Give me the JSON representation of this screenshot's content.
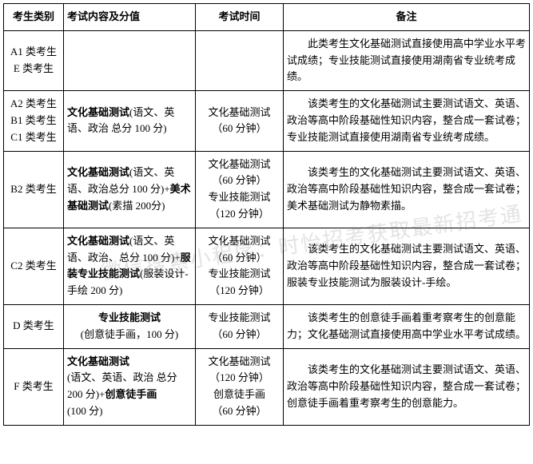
{
  "headers": {
    "category": "考生类别",
    "content": "考试内容及分值",
    "time": "考试时间",
    "remark": "备注"
  },
  "watermark": "微信搜索小程序：时怡招考获取最新招考通",
  "rows": [
    {
      "category_line1": "A1 类考生",
      "category_line2": "E 类考生",
      "content": "",
      "time": "",
      "remark": "此类考生文化基础测试直接使用高中学业水平考试成绩；专业技能测试直接使用湖南省专业统考成绩。"
    },
    {
      "category_line1": "A2 类考生",
      "category_line2": "B1 类考生",
      "category_line3": "C1 类考生",
      "content_bold": "文化基础测试",
      "content_plain": "(语文、英语、政治 总分 100 分)",
      "time_line1": "文化基础测试",
      "time_line2": "（60 分钟）",
      "remark": "该类考生的文化基础测试主要测试语文、英语、政治等高中阶段基础性知识内容，整合成一套试卷；专业技能测试直接使用湖南省专业统考成绩。"
    },
    {
      "category": "B2 类考生",
      "content_bold1": "文化基础测试",
      "content_plain1": "(语文、英语、政治总分 100 分)+",
      "content_bold2": "美术基础测试",
      "content_plain2": "(素描 200分)",
      "time_line1": "文化基础测试",
      "time_line2": "（60 分钟）",
      "time_line3": "专业技能测试",
      "time_line4": "（120 分钟）",
      "remark": "该类考生的文化基础测试主要测试语文、英语、政治等高中阶段基础性知识内容，整合成一套试卷；美术基础测试为静物素描。"
    },
    {
      "category": "C2 类考生",
      "content_bold1": "文化基础测试",
      "content_plain1": "(语文、英语、政治、总分 100 分)+",
      "content_bold2": "服装专业技能测试",
      "content_plain2": "(服装设计-手绘 200 分)",
      "time_line1": "文化基础测试",
      "time_line2": "（60 分钟）",
      "time_line3": "专业技能测试",
      "time_line4": "（120 分钟）",
      "remark": "该类考生的文化基础测试主要测试语文、英语、政治等高中阶段基础性知识内容，整合成一套试卷；服装专业技能测试为服装设计-手绘。"
    },
    {
      "category": "D 类考生",
      "content_bold": "专业技能测试",
      "content_plain": "(创意徒手画，100 分)",
      "time_line1": "专业技能测试",
      "time_line2": "（60 分钟）",
      "remark": "该类考生的创意徒手画着重考察考生的创意能力；文化基础测试直接使用高中学业水平考试成绩。"
    },
    {
      "category": "F 类考生",
      "content_bold1": "文化基础测试",
      "content_plain1": "(语文、英语、政治 总分200 分)+",
      "content_bold2": "创意徒手画",
      "content_plain2": "(100 分)",
      "time_line1": "文化基础测试",
      "time_line2": "（120 分钟）",
      "time_line3": "创意徒手画",
      "time_line4": "（60 分钟）",
      "remark": "该类考生的文化基础测试主要测试语文、英语、政治等高中阶段基础性知识内容，整合成一套试卷；创意徒手画着重考察考生的创意能力。"
    }
  ]
}
